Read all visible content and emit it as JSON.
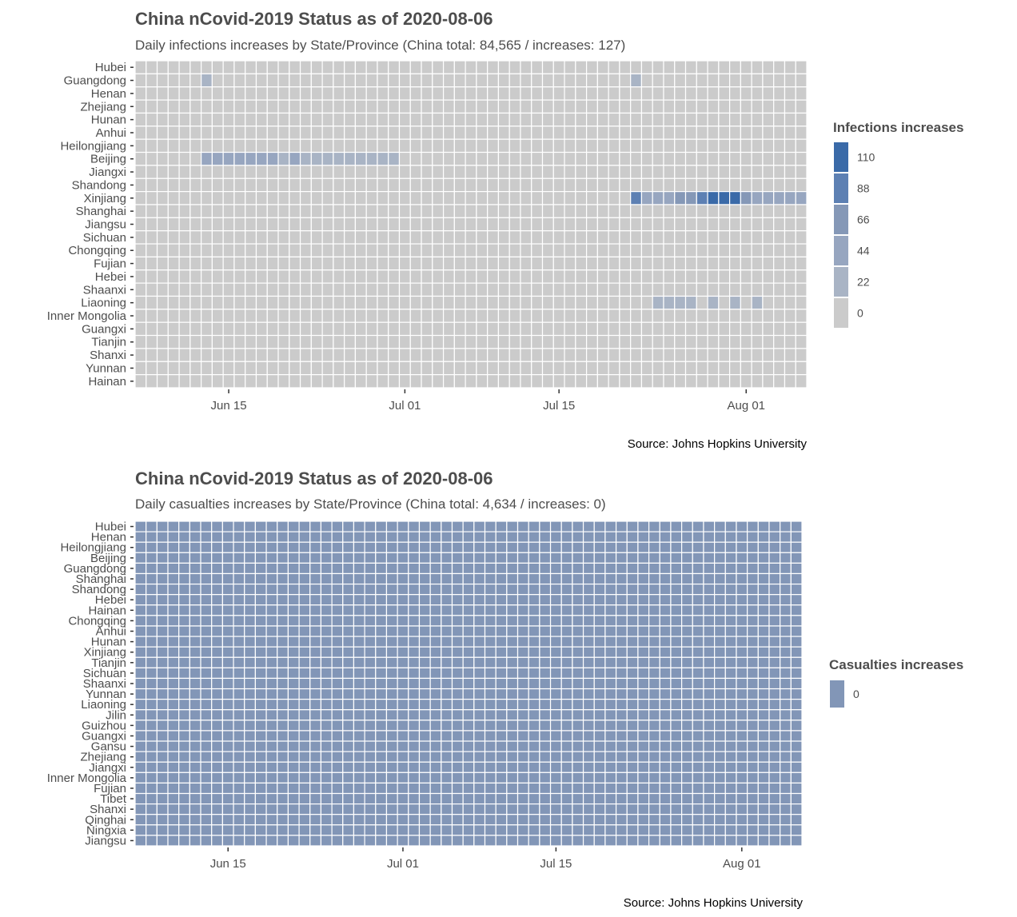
{
  "colors": {
    "zero": "#cbcbcb",
    "low": "#a9b4c5",
    "mid": "#8598b7",
    "high": "#3a6aa8",
    "grid_line": "#ffffff",
    "casualties_fill": "#8296b7"
  },
  "chart_data": [
    {
      "type": "heatmap",
      "title": "China nCovid-2019 Status as of 2020-08-06",
      "subtitle": "Daily infections increases by State/Province (China total: 84,565 / increases: 127)",
      "source": "Source: Johns Hopkins University",
      "x_start": "2020-06-07",
      "x_end": "2020-08-06",
      "x_ticks": [
        "Jun 15",
        "Jul 01",
        "Jul 15",
        "Aug 01"
      ],
      "rows": [
        "Hubei",
        "Guangdong",
        "Henan",
        "Zhejiang",
        "Hunan",
        "Anhui",
        "Heilongjiang",
        "Beijing",
        "Jiangxi",
        "Shandong",
        "Xinjiang",
        "Shanghai",
        "Jiangsu",
        "Sichuan",
        "Chongqing",
        "Fujian",
        "Hebei",
        "Shaanxi",
        "Liaoning",
        "Inner Mongolia",
        "Guangxi",
        "Tianjin",
        "Shanxi",
        "Yunnan",
        "Hainan"
      ],
      "legend_title": "Infections increases",
      "legend_labels": [
        "110",
        "88",
        "66",
        "44",
        "22",
        "0"
      ],
      "highlights": [
        {
          "row": "Guangdong",
          "date": "2020-06-13",
          "value": 10
        },
        {
          "row": "Guangdong",
          "date": "2020-07-22",
          "value": 8
        },
        {
          "row": "Beijing",
          "date": "2020-06-13",
          "value": 36
        },
        {
          "row": "Beijing",
          "date": "2020-06-14",
          "value": 36
        },
        {
          "row": "Beijing",
          "date": "2020-06-15",
          "value": 27
        },
        {
          "row": "Beijing",
          "date": "2020-06-16",
          "value": 31
        },
        {
          "row": "Beijing",
          "date": "2020-06-17",
          "value": 21
        },
        {
          "row": "Beijing",
          "date": "2020-06-18",
          "value": 25
        },
        {
          "row": "Beijing",
          "date": "2020-06-19",
          "value": 22
        },
        {
          "row": "Beijing",
          "date": "2020-06-20",
          "value": 11
        },
        {
          "row": "Beijing",
          "date": "2020-06-21",
          "value": 22
        },
        {
          "row": "Beijing",
          "date": "2020-06-22",
          "value": 9
        },
        {
          "row": "Beijing",
          "date": "2020-06-23",
          "value": 13
        },
        {
          "row": "Beijing",
          "date": "2020-06-24",
          "value": 7
        },
        {
          "row": "Beijing",
          "date": "2020-06-25",
          "value": 11
        },
        {
          "row": "Beijing",
          "date": "2020-06-26",
          "value": 8
        },
        {
          "row": "Beijing",
          "date": "2020-06-27",
          "value": 14
        },
        {
          "row": "Beijing",
          "date": "2020-06-28",
          "value": 6
        },
        {
          "row": "Beijing",
          "date": "2020-06-29",
          "value": 10
        },
        {
          "row": "Beijing",
          "date": "2020-06-30",
          "value": 2
        },
        {
          "row": "Xinjiang",
          "date": "2020-07-22",
          "value": 80
        },
        {
          "row": "Xinjiang",
          "date": "2020-07-23",
          "value": 22
        },
        {
          "row": "Xinjiang",
          "date": "2020-07-24",
          "value": 31
        },
        {
          "row": "Xinjiang",
          "date": "2020-07-25",
          "value": 26
        },
        {
          "row": "Xinjiang",
          "date": "2020-07-26",
          "value": 42
        },
        {
          "row": "Xinjiang",
          "date": "2020-07-27",
          "value": 57
        },
        {
          "row": "Xinjiang",
          "date": "2020-07-28",
          "value": 70
        },
        {
          "row": "Xinjiang",
          "date": "2020-07-29",
          "value": 105
        },
        {
          "row": "Xinjiang",
          "date": "2020-07-30",
          "value": 112
        },
        {
          "row": "Xinjiang",
          "date": "2020-07-31",
          "value": 112
        },
        {
          "row": "Xinjiang",
          "date": "2020-08-01",
          "value": 45
        },
        {
          "row": "Xinjiang",
          "date": "2020-08-02",
          "value": 36
        },
        {
          "row": "Xinjiang",
          "date": "2020-08-03",
          "value": 28
        },
        {
          "row": "Xinjiang",
          "date": "2020-08-04",
          "value": 22
        },
        {
          "row": "Xinjiang",
          "date": "2020-08-05",
          "value": 27
        },
        {
          "row": "Xinjiang",
          "date": "2020-08-06",
          "value": 23
        },
        {
          "row": "Liaoning",
          "date": "2020-07-24",
          "value": 5
        },
        {
          "row": "Liaoning",
          "date": "2020-07-25",
          "value": 8
        },
        {
          "row": "Liaoning",
          "date": "2020-07-26",
          "value": 10
        },
        {
          "row": "Liaoning",
          "date": "2020-07-27",
          "value": 8
        },
        {
          "row": "Liaoning",
          "date": "2020-07-29",
          "value": 5
        },
        {
          "row": "Liaoning",
          "date": "2020-07-31",
          "value": 6
        },
        {
          "row": "Liaoning",
          "date": "2020-08-02",
          "value": 4
        }
      ],
      "other_cells_value": 0,
      "xlabel": "",
      "ylabel": "",
      "grid": true,
      "legend_position": "right"
    },
    {
      "type": "heatmap",
      "title": "China nCovid-2019 Status as of 2020-08-06",
      "subtitle": "Daily casualties increases by State/Province (China total: 4,634 / increases: 0)",
      "source": "Source: Johns Hopkins University",
      "x_start": "2020-06-07",
      "x_end": "2020-08-06",
      "x_ticks": [
        "Jun 15",
        "Jul 01",
        "Jul 15",
        "Aug 01"
      ],
      "rows": [
        "Hubei",
        "Henan",
        "Heilongjiang",
        "Beijing",
        "Guangdong",
        "Shanghai",
        "Shandong",
        "Hebei",
        "Hainan",
        "Chongqing",
        "Anhui",
        "Hunan",
        "Xinjiang",
        "Tianjin",
        "Sichuan",
        "Shaanxi",
        "Yunnan",
        "Liaoning",
        "Jilin",
        "Guizhou",
        "Guangxi",
        "Gansu",
        "Zhejiang",
        "Jiangxi",
        "Inner Mongolia",
        "Fujian",
        "Tibet",
        "Shanxi",
        "Qinghai",
        "Ningxia",
        "Jiangsu"
      ],
      "legend_title": "Casualties increases",
      "legend_labels": [
        "0"
      ],
      "highlights": [],
      "other_cells_value": 0,
      "xlabel": "",
      "ylabel": "",
      "grid": true,
      "legend_position": "right"
    }
  ]
}
